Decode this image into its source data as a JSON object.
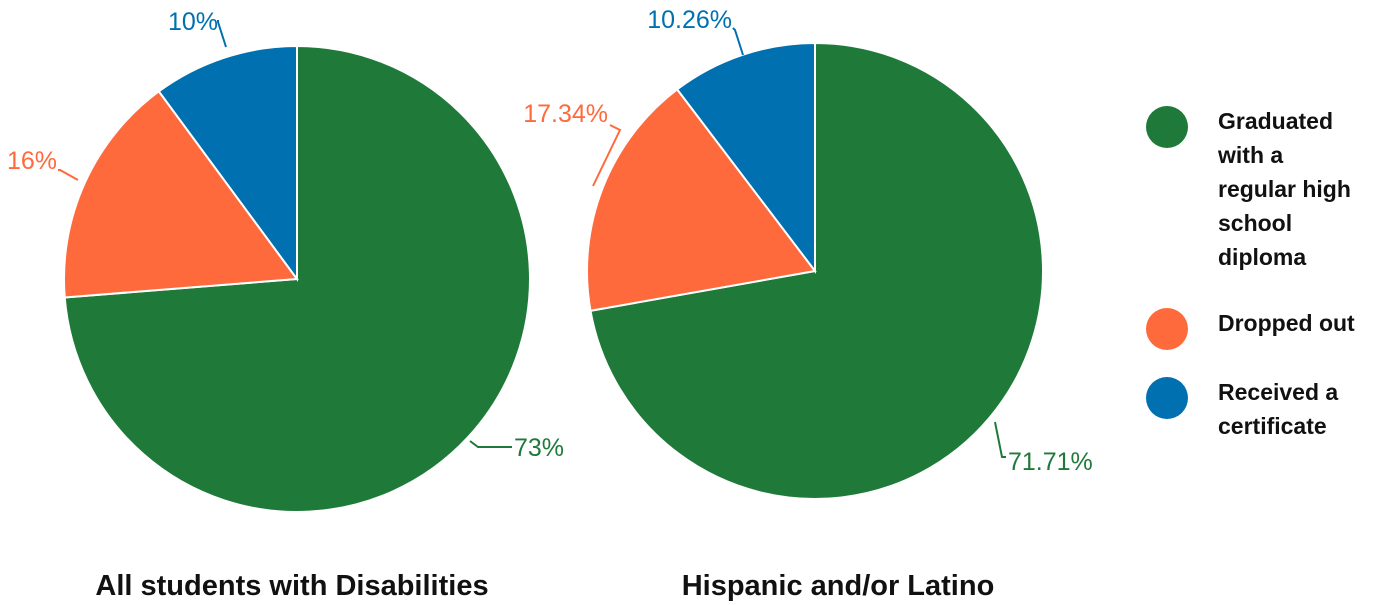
{
  "chart_data": [
    {
      "type": "pie",
      "title": "All students with Disabilities",
      "categories": [
        "Graduated with a regular high school diploma",
        "Dropped out",
        "Received a certificate"
      ],
      "values": [
        73,
        16,
        10
      ],
      "labels": [
        "73%",
        "16%",
        "10%"
      ]
    },
    {
      "type": "pie",
      "title": "Hispanic and/or Latino",
      "categories": [
        "Graduated with a regular high school diploma",
        "Dropped out",
        "Received a certificate"
      ],
      "values": [
        71.71,
        17.34,
        10.26
      ],
      "labels": [
        "71.71%",
        "17.34%",
        "10.26%"
      ]
    }
  ],
  "legend": {
    "items": [
      {
        "name": "Graduated with a regular high school diploma",
        "lines": [
          "Graduated",
          "with a",
          "regular high",
          "school",
          "diploma"
        ],
        "color": "#1f7a3a"
      },
      {
        "name": "Dropped out",
        "lines": [
          "Dropped out"
        ],
        "color": "#ff6a3c"
      },
      {
        "name": "Received a certificate",
        "lines": [
          "Received a",
          "certificate"
        ],
        "color": "#0070b0"
      }
    ]
  }
}
